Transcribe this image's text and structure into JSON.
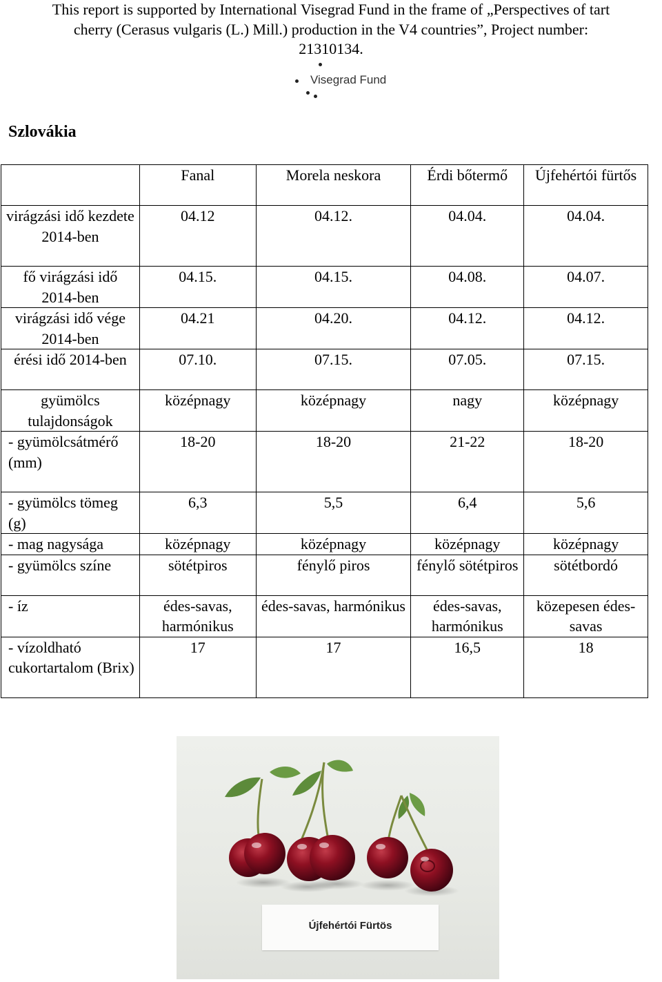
{
  "header": {
    "line1": "This report is supported by International Visegrad Fund in the frame of „Perspectives of tart",
    "line2": "cherry (Cerasus vulgaris (L.) Mill.) production in the V4 countries”, Project number:",
    "line3": "21310134."
  },
  "logo": {
    "text": "Visegrad Fund"
  },
  "section_title": "Szlovákia",
  "table": {
    "columns": [
      "Fanal",
      "Morela neskora",
      "Érdi bőtermő",
      "Újfehértói fürtős"
    ],
    "rows": [
      {
        "label": "virágzási idő kezdete 2014-ben",
        "values": [
          "04.12",
          "04.12.",
          "04.04.",
          "04.04."
        ]
      },
      {
        "label": "fő virágzási idő 2014-ben",
        "values": [
          "04.15.",
          "04.15.",
          "04.08.",
          "04.07."
        ]
      },
      {
        "label": "virágzási idő vége 2014-ben",
        "values": [
          "04.21",
          "04.20.",
          "04.12.",
          "04.12."
        ]
      },
      {
        "label": "érési idő 2014-ben",
        "values": [
          "07.10.",
          "07.15.",
          "07.05.",
          "07.15."
        ]
      },
      {
        "label": "gyümölcs tulajdonságok",
        "values": [
          "középnagy",
          "középnagy",
          "nagy",
          "középnagy"
        ]
      },
      {
        "label": "- gyümölcsátmérő (mm)",
        "values": [
          "18-20",
          "18-20",
          "21-22",
          "18-20"
        ]
      },
      {
        "label": "- gyümölcs tömeg (g)",
        "values": [
          "6,3",
          "5,5",
          "6,4",
          "5,6"
        ]
      },
      {
        "label": "- mag nagysága",
        "values": [
          "középnagy",
          "középnagy",
          "középnagy",
          "középnagy"
        ]
      },
      {
        "label": "- gyümölcs színe",
        "values": [
          "sötétpiros",
          "fénylő piros",
          "fénylő sötétpiros",
          "sötétbordó"
        ]
      },
      {
        "label": "- íz",
        "values": [
          "édes-savas, harmónikus",
          "édes-savas, harmónikus",
          "édes-savas, harmónikus",
          "közepesen édes-savas"
        ]
      },
      {
        "label": "- vízoldható cukortartalom (Brix)",
        "values": [
          "17",
          "17",
          "16,5",
          "18"
        ]
      }
    ]
  },
  "photo": {
    "card_label": "Újfehértói Fürtös"
  }
}
